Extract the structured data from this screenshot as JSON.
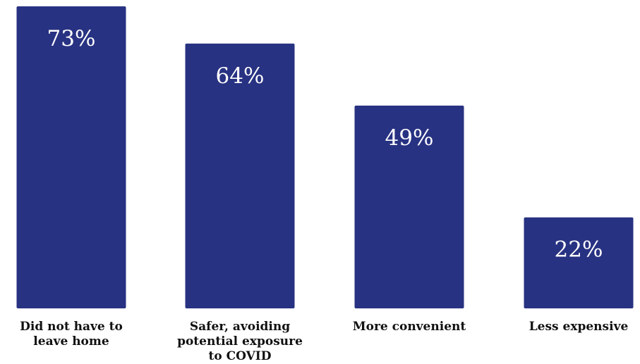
{
  "chart_data": {
    "type": "bar",
    "categories": [
      [
        "Did not have to",
        "leave home"
      ],
      [
        "Safer, avoiding",
        "potential exposure",
        "to COVID"
      ],
      [
        "More convenient"
      ],
      [
        "Less expensive"
      ]
    ],
    "values": [
      73,
      64,
      49,
      22
    ],
    "value_labels": [
      "73%",
      "64%",
      "49%",
      "22%"
    ],
    "title": "",
    "xlabel": "",
    "ylabel": "",
    "ylim": [
      0,
      73
    ],
    "grid": false,
    "legend": "none",
    "bar_color": "#283282",
    "label_color": "#ffffff"
  }
}
